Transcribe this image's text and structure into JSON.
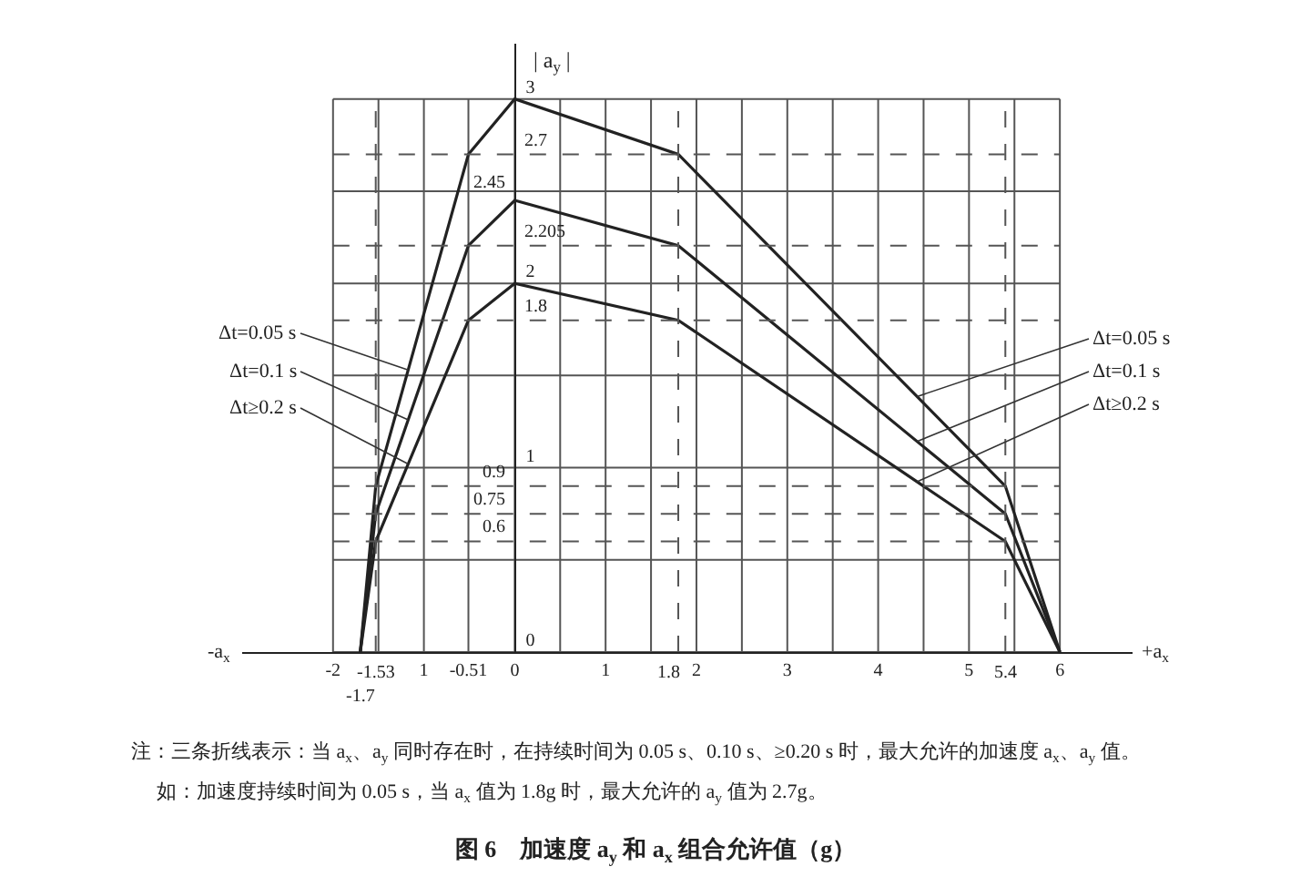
{
  "chart_data": {
    "type": "line",
    "title": "图 6　加速度 a$_{y}$ 和 a$_{x}$ 组合允许值（g）",
    "xlabel": "+a$_{x}$",
    "ylabel": "| a$_{y}$ |",
    "annotations": [
      "-a$_{x}$",
      "注：三条折线表示：当 a$_{x}$、a$_{y}$ 同时存在时，在持续时间为 0.05 s、0.10 s、≥0.20 s 时，最大允许的加速度 a$_{x}$、a$_{y}$ 值。",
      "如：加速度持续时间为 0.05 s，当 a$_{x}$ 值为 1.8g 时，最大允许的 a$_{y}$ 值为 2.7g。",
      {
        "text": "-1.7",
        "x": -1.7,
        "y": 0
      },
      {
        "text": "2.45",
        "x": 0,
        "y": 2.45
      }
    ],
    "x": [
      -1.7,
      -1.53,
      -0.51,
      0,
      1.8,
      5.4,
      6
    ],
    "series": [
      {
        "name": "Δt=0.05 s",
        "color": "#222222",
        "values": [
          0,
          0.9,
          2.7,
          3,
          2.7,
          0.9,
          0
        ]
      },
      {
        "name": "Δt=0.1 s",
        "color": "#222222",
        "values": [
          0,
          0.75,
          2.205,
          2.45,
          2.205,
          0.75,
          0
        ]
      },
      {
        "name": "Δt≥0.2 s",
        "color": "#222222",
        "values": [
          0,
          0.6,
          1.8,
          2,
          1.8,
          0.6,
          0
        ]
      }
    ],
    "xlim": [
      -3,
      6.8
    ],
    "ylim": [
      0,
      3.3
    ],
    "xticks": [
      -2,
      {
        "value": -1.5,
        "label": null
      },
      {
        "value": -1,
        "label": "1"
      },
      -0.51,
      0,
      {
        "value": 0.5,
        "label": null
      },
      1,
      {
        "value": 1.5,
        "label": null
      },
      2,
      {
        "value": 2.5,
        "label": null
      },
      3,
      {
        "value": 3.5,
        "label": null
      },
      4,
      {
        "value": 4.5,
        "label": null
      },
      5,
      {
        "value": 5.5,
        "label": null
      },
      6
    ],
    "yticks": [
      0,
      {
        "value": 0.5,
        "label": null
      },
      1,
      {
        "value": 1.5,
        "label": null
      },
      2,
      {
        "value": 2.5,
        "label": null
      },
      3
    ],
    "ref_lines": [
      {
        "axis": "y",
        "value": 2.7,
        "label": "2.7",
        "line_style": "dashed"
      },
      {
        "axis": "y",
        "value": 2.205,
        "label": "2.205",
        "line_style": "dashed"
      },
      {
        "axis": "y",
        "value": 1.8,
        "label": "1.8",
        "line_style": "dashed"
      },
      {
        "axis": "y",
        "value": 0.9,
        "label": "0.9",
        "line_style": "dashed"
      },
      {
        "axis": "y",
        "value": 0.75,
        "label": "0.75",
        "line_style": "dashed"
      },
      {
        "axis": "y",
        "value": 0.6,
        "label": "0.6",
        "line_style": "dashed"
      },
      {
        "axis": "x",
        "value": -1.53,
        "label": "-1.53",
        "line_style": "dashed"
      },
      {
        "axis": "x",
        "value": 1.8,
        "label": "1.8",
        "line_style": "dashed"
      },
      {
        "axis": "x",
        "value": 5.4,
        "label": "5.4",
        "line_style": "dashed"
      }
    ],
    "grid": true,
    "legend": false,
    "marker": "none",
    "line_style": "solid"
  }
}
